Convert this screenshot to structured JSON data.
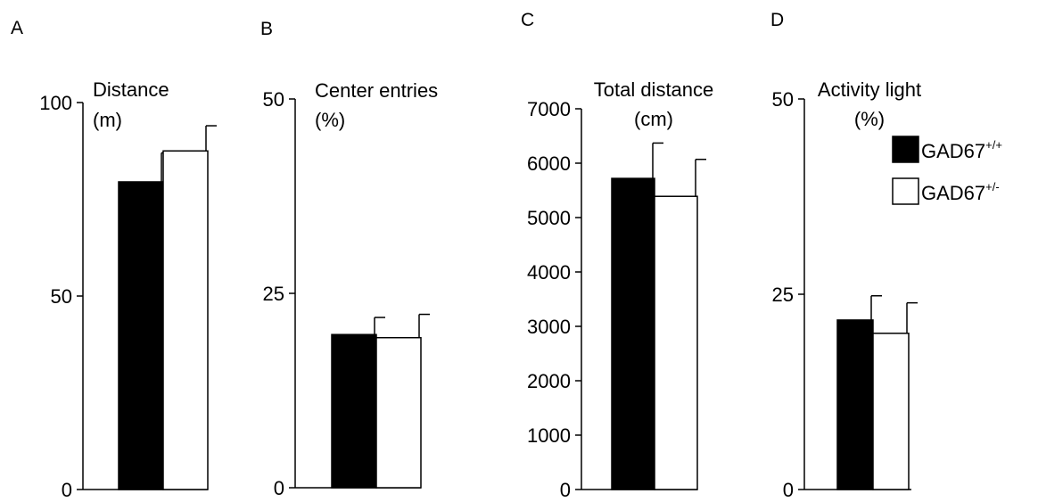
{
  "series_names": [
    "GAD67+/+",
    "GAD67+/-"
  ],
  "series_colors": [
    "#000000",
    "#ffffff"
  ],
  "legend": {
    "placement": "top-right of panel D",
    "entries": [
      {
        "base": "GAD67",
        "sup": "+/+",
        "fill": "#000000"
      },
      {
        "base": "GAD67",
        "sup": "+/-",
        "fill": "#ffffff"
      }
    ]
  },
  "chart_data": [
    {
      "panel": "A",
      "type": "bar",
      "ylabel_lines": [
        "Distance",
        "(m)"
      ],
      "ylim": [
        0,
        100
      ],
      "yticks": [
        0,
        50,
        100
      ],
      "series": [
        {
          "name": "GAD67+/+",
          "values": [
            79.5
          ],
          "error": [
            7.5
          ]
        },
        {
          "name": "GAD67+/-",
          "values": [
            87.5
          ],
          "error": [
            6.5
          ]
        }
      ]
    },
    {
      "panel": "B",
      "type": "bar",
      "ylabel_lines": [
        "Center entries",
        "(%)"
      ],
      "ylim": [
        0,
        50
      ],
      "yticks": [
        0,
        25,
        50
      ],
      "series": [
        {
          "name": "GAD67+/+",
          "values": [
            19.7
          ],
          "error": [
            2.2
          ]
        },
        {
          "name": "GAD67+/-",
          "values": [
            19.3
          ],
          "error": [
            3.0
          ]
        }
      ]
    },
    {
      "panel": "C",
      "type": "bar",
      "ylabel_lines": [
        "Total distance",
        "(cm)"
      ],
      "ylim": [
        0,
        7000
      ],
      "yticks": [
        0,
        1000,
        2000,
        3000,
        4000,
        5000,
        6000,
        7000
      ],
      "series": [
        {
          "name": "GAD67+/+",
          "values": [
            5720
          ],
          "error": [
            650
          ]
        },
        {
          "name": "GAD67+/-",
          "values": [
            5390
          ],
          "error": [
            680
          ]
        }
      ]
    },
    {
      "panel": "D",
      "type": "bar",
      "ylabel_lines": [
        "Activity light",
        "(%)"
      ],
      "ylim": [
        0,
        50
      ],
      "yticks": [
        0,
        25,
        50
      ],
      "series": [
        {
          "name": "GAD67+/+",
          "values": [
            21.7
          ],
          "error": [
            3.1
          ]
        },
        {
          "name": "GAD67+/-",
          "values": [
            20.0
          ],
          "error": [
            3.9
          ]
        }
      ]
    }
  ]
}
